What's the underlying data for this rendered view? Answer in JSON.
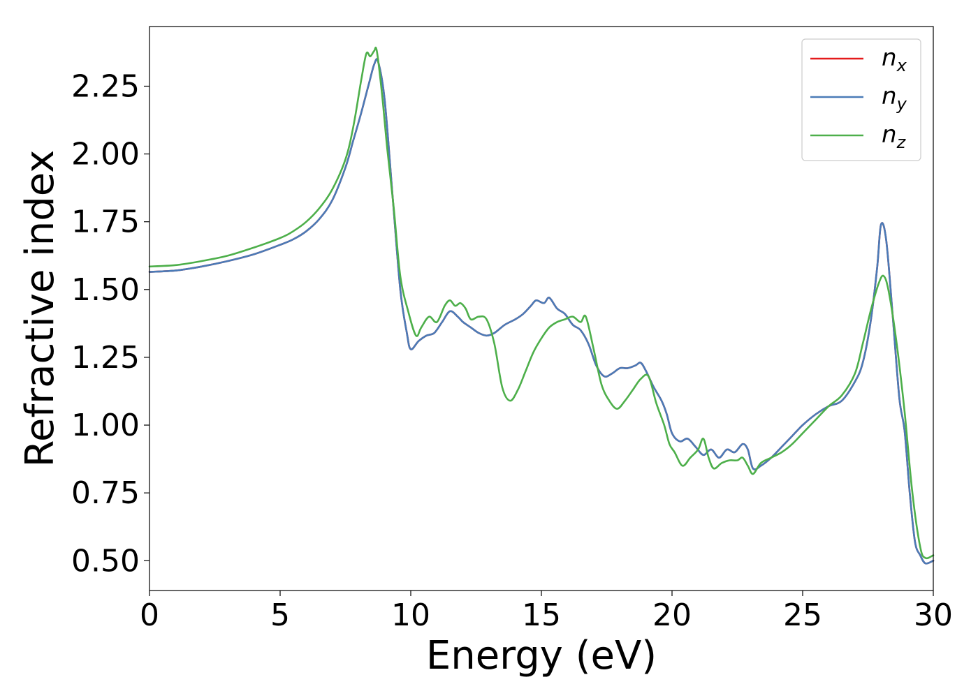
{
  "chart_data": {
    "type": "line",
    "title": "",
    "xlabel": "Energy (eV)",
    "ylabel": "Refractive index",
    "xlim": [
      0,
      30
    ],
    "ylim": [
      0.39,
      2.47
    ],
    "xticks": [
      0,
      5,
      10,
      15,
      20,
      25,
      30
    ],
    "xtick_labels": [
      "0",
      "5",
      "10",
      "15",
      "20",
      "25",
      "30"
    ],
    "yticks": [
      0.5,
      0.75,
      1.0,
      1.25,
      1.5,
      1.75,
      2.0,
      2.25
    ],
    "ytick_labels": [
      "0.50",
      "0.75",
      "1.00",
      "1.25",
      "1.50",
      "1.75",
      "2.00",
      "2.25"
    ],
    "grid": false,
    "legend_position": "top-right",
    "series": [
      {
        "name": "n_x",
        "label_base": "n",
        "label_sub": "x",
        "color": "#e41a1c",
        "x": [
          0,
          1,
          2,
          3,
          4,
          5,
          5.5,
          6,
          6.5,
          7,
          7.5,
          7.8,
          8.1,
          8.4,
          8.6,
          8.75,
          9.0,
          9.3,
          9.6,
          9.85,
          10.0,
          10.3,
          10.6,
          10.9,
          11.2,
          11.5,
          11.8,
          12.0,
          12.3,
          12.6,
          12.9,
          13.2,
          13.6,
          14.0,
          14.3,
          14.6,
          14.8,
          15.1,
          15.3,
          15.6,
          15.9,
          16.2,
          16.5,
          16.8,
          17.1,
          17.4,
          17.7,
          18.0,
          18.3,
          18.6,
          18.8,
          19.0,
          19.3,
          19.6,
          19.8,
          20.0,
          20.3,
          20.6,
          20.9,
          21.2,
          21.5,
          21.8,
          22.1,
          22.4,
          22.7,
          22.9,
          23.1,
          23.4,
          23.8,
          24.2,
          24.6,
          25.0,
          25.5,
          26.0,
          26.5,
          27.0,
          27.3,
          27.6,
          27.85,
          28.0,
          28.2,
          28.45,
          28.7,
          28.9,
          29.1,
          29.3,
          29.5,
          29.7,
          30.0
        ],
        "y": [
          1.565,
          1.57,
          1.585,
          1.605,
          1.63,
          1.665,
          1.685,
          1.715,
          1.76,
          1.83,
          1.95,
          2.05,
          2.15,
          2.26,
          2.33,
          2.34,
          2.2,
          1.85,
          1.5,
          1.34,
          1.28,
          1.31,
          1.33,
          1.34,
          1.38,
          1.42,
          1.4,
          1.38,
          1.36,
          1.34,
          1.33,
          1.34,
          1.37,
          1.39,
          1.41,
          1.44,
          1.46,
          1.45,
          1.47,
          1.43,
          1.41,
          1.37,
          1.35,
          1.3,
          1.22,
          1.18,
          1.19,
          1.21,
          1.21,
          1.22,
          1.23,
          1.2,
          1.14,
          1.09,
          1.04,
          0.97,
          0.94,
          0.95,
          0.92,
          0.89,
          0.91,
          0.88,
          0.91,
          0.9,
          0.93,
          0.91,
          0.84,
          0.85,
          0.88,
          0.92,
          0.96,
          1.0,
          1.04,
          1.07,
          1.09,
          1.16,
          1.23,
          1.38,
          1.58,
          1.74,
          1.68,
          1.4,
          1.1,
          0.98,
          0.75,
          0.57,
          0.52,
          0.49,
          0.5
        ]
      },
      {
        "name": "n_y",
        "label_base": "n",
        "label_sub": "y",
        "color": "#4a7bb7",
        "x": [
          0,
          1,
          2,
          3,
          4,
          5,
          5.5,
          6,
          6.5,
          7,
          7.5,
          7.8,
          8.1,
          8.4,
          8.6,
          8.75,
          9.0,
          9.3,
          9.6,
          9.85,
          10.0,
          10.3,
          10.6,
          10.9,
          11.2,
          11.5,
          11.8,
          12.0,
          12.3,
          12.6,
          12.9,
          13.2,
          13.6,
          14.0,
          14.3,
          14.6,
          14.8,
          15.1,
          15.3,
          15.6,
          15.9,
          16.2,
          16.5,
          16.8,
          17.1,
          17.4,
          17.7,
          18.0,
          18.3,
          18.6,
          18.8,
          19.0,
          19.3,
          19.6,
          19.8,
          20.0,
          20.3,
          20.6,
          20.9,
          21.2,
          21.5,
          21.8,
          22.1,
          22.4,
          22.7,
          22.9,
          23.1,
          23.4,
          23.8,
          24.2,
          24.6,
          25.0,
          25.5,
          26.0,
          26.5,
          27.0,
          27.3,
          27.6,
          27.85,
          28.0,
          28.2,
          28.45,
          28.7,
          28.9,
          29.1,
          29.3,
          29.5,
          29.7,
          30.0
        ],
        "y": [
          1.565,
          1.57,
          1.585,
          1.605,
          1.63,
          1.665,
          1.685,
          1.715,
          1.76,
          1.83,
          1.95,
          2.05,
          2.15,
          2.26,
          2.33,
          2.34,
          2.2,
          1.85,
          1.5,
          1.34,
          1.28,
          1.31,
          1.33,
          1.34,
          1.38,
          1.42,
          1.4,
          1.38,
          1.36,
          1.34,
          1.33,
          1.34,
          1.37,
          1.39,
          1.41,
          1.44,
          1.46,
          1.45,
          1.47,
          1.43,
          1.41,
          1.37,
          1.35,
          1.3,
          1.22,
          1.18,
          1.19,
          1.21,
          1.21,
          1.22,
          1.23,
          1.2,
          1.14,
          1.09,
          1.04,
          0.97,
          0.94,
          0.95,
          0.92,
          0.89,
          0.91,
          0.88,
          0.91,
          0.9,
          0.93,
          0.91,
          0.84,
          0.85,
          0.88,
          0.92,
          0.96,
          1.0,
          1.04,
          1.07,
          1.09,
          1.16,
          1.23,
          1.38,
          1.58,
          1.74,
          1.68,
          1.4,
          1.1,
          0.98,
          0.75,
          0.57,
          0.52,
          0.49,
          0.5
        ]
      },
      {
        "name": "n_z",
        "label_base": "n",
        "label_sub": "z",
        "color": "#4daf4a",
        "x": [
          0,
          1,
          2,
          3,
          4,
          5,
          5.5,
          6,
          6.5,
          7,
          7.5,
          7.8,
          8.1,
          8.3,
          8.45,
          8.6,
          8.7,
          8.9,
          9.1,
          9.35,
          9.6,
          9.9,
          10.2,
          10.4,
          10.7,
          11.0,
          11.3,
          11.5,
          11.7,
          11.9,
          12.1,
          12.3,
          12.6,
          12.9,
          13.2,
          13.5,
          13.8,
          14.1,
          14.4,
          14.7,
          15.0,
          15.3,
          15.6,
          15.9,
          16.2,
          16.5,
          16.7,
          17.0,
          17.3,
          17.6,
          17.9,
          18.2,
          18.5,
          18.8,
          19.1,
          19.4,
          19.7,
          19.9,
          20.1,
          20.4,
          20.7,
          21.0,
          21.2,
          21.4,
          21.6,
          21.9,
          22.2,
          22.5,
          22.7,
          22.9,
          23.1,
          23.4,
          23.8,
          24.2,
          24.6,
          25.0,
          25.5,
          26.0,
          26.5,
          27.0,
          27.3,
          27.6,
          27.9,
          28.1,
          28.3,
          28.6,
          28.9,
          29.2,
          29.5,
          29.7,
          30.0
        ],
        "y": [
          1.585,
          1.59,
          1.605,
          1.625,
          1.655,
          1.69,
          1.715,
          1.75,
          1.8,
          1.87,
          1.98,
          2.1,
          2.27,
          2.37,
          2.36,
          2.38,
          2.38,
          2.22,
          2.02,
          1.8,
          1.55,
          1.42,
          1.33,
          1.36,
          1.4,
          1.38,
          1.44,
          1.46,
          1.44,
          1.45,
          1.43,
          1.39,
          1.4,
          1.39,
          1.3,
          1.14,
          1.09,
          1.13,
          1.2,
          1.27,
          1.32,
          1.36,
          1.38,
          1.39,
          1.4,
          1.38,
          1.4,
          1.28,
          1.15,
          1.09,
          1.06,
          1.09,
          1.13,
          1.17,
          1.18,
          1.08,
          1.0,
          0.93,
          0.9,
          0.85,
          0.88,
          0.91,
          0.95,
          0.88,
          0.84,
          0.86,
          0.87,
          0.87,
          0.88,
          0.85,
          0.82,
          0.86,
          0.88,
          0.9,
          0.93,
          0.97,
          1.02,
          1.07,
          1.11,
          1.19,
          1.3,
          1.42,
          1.52,
          1.55,
          1.49,
          1.3,
          1.05,
          0.75,
          0.55,
          0.51,
          0.52
        ]
      }
    ]
  }
}
